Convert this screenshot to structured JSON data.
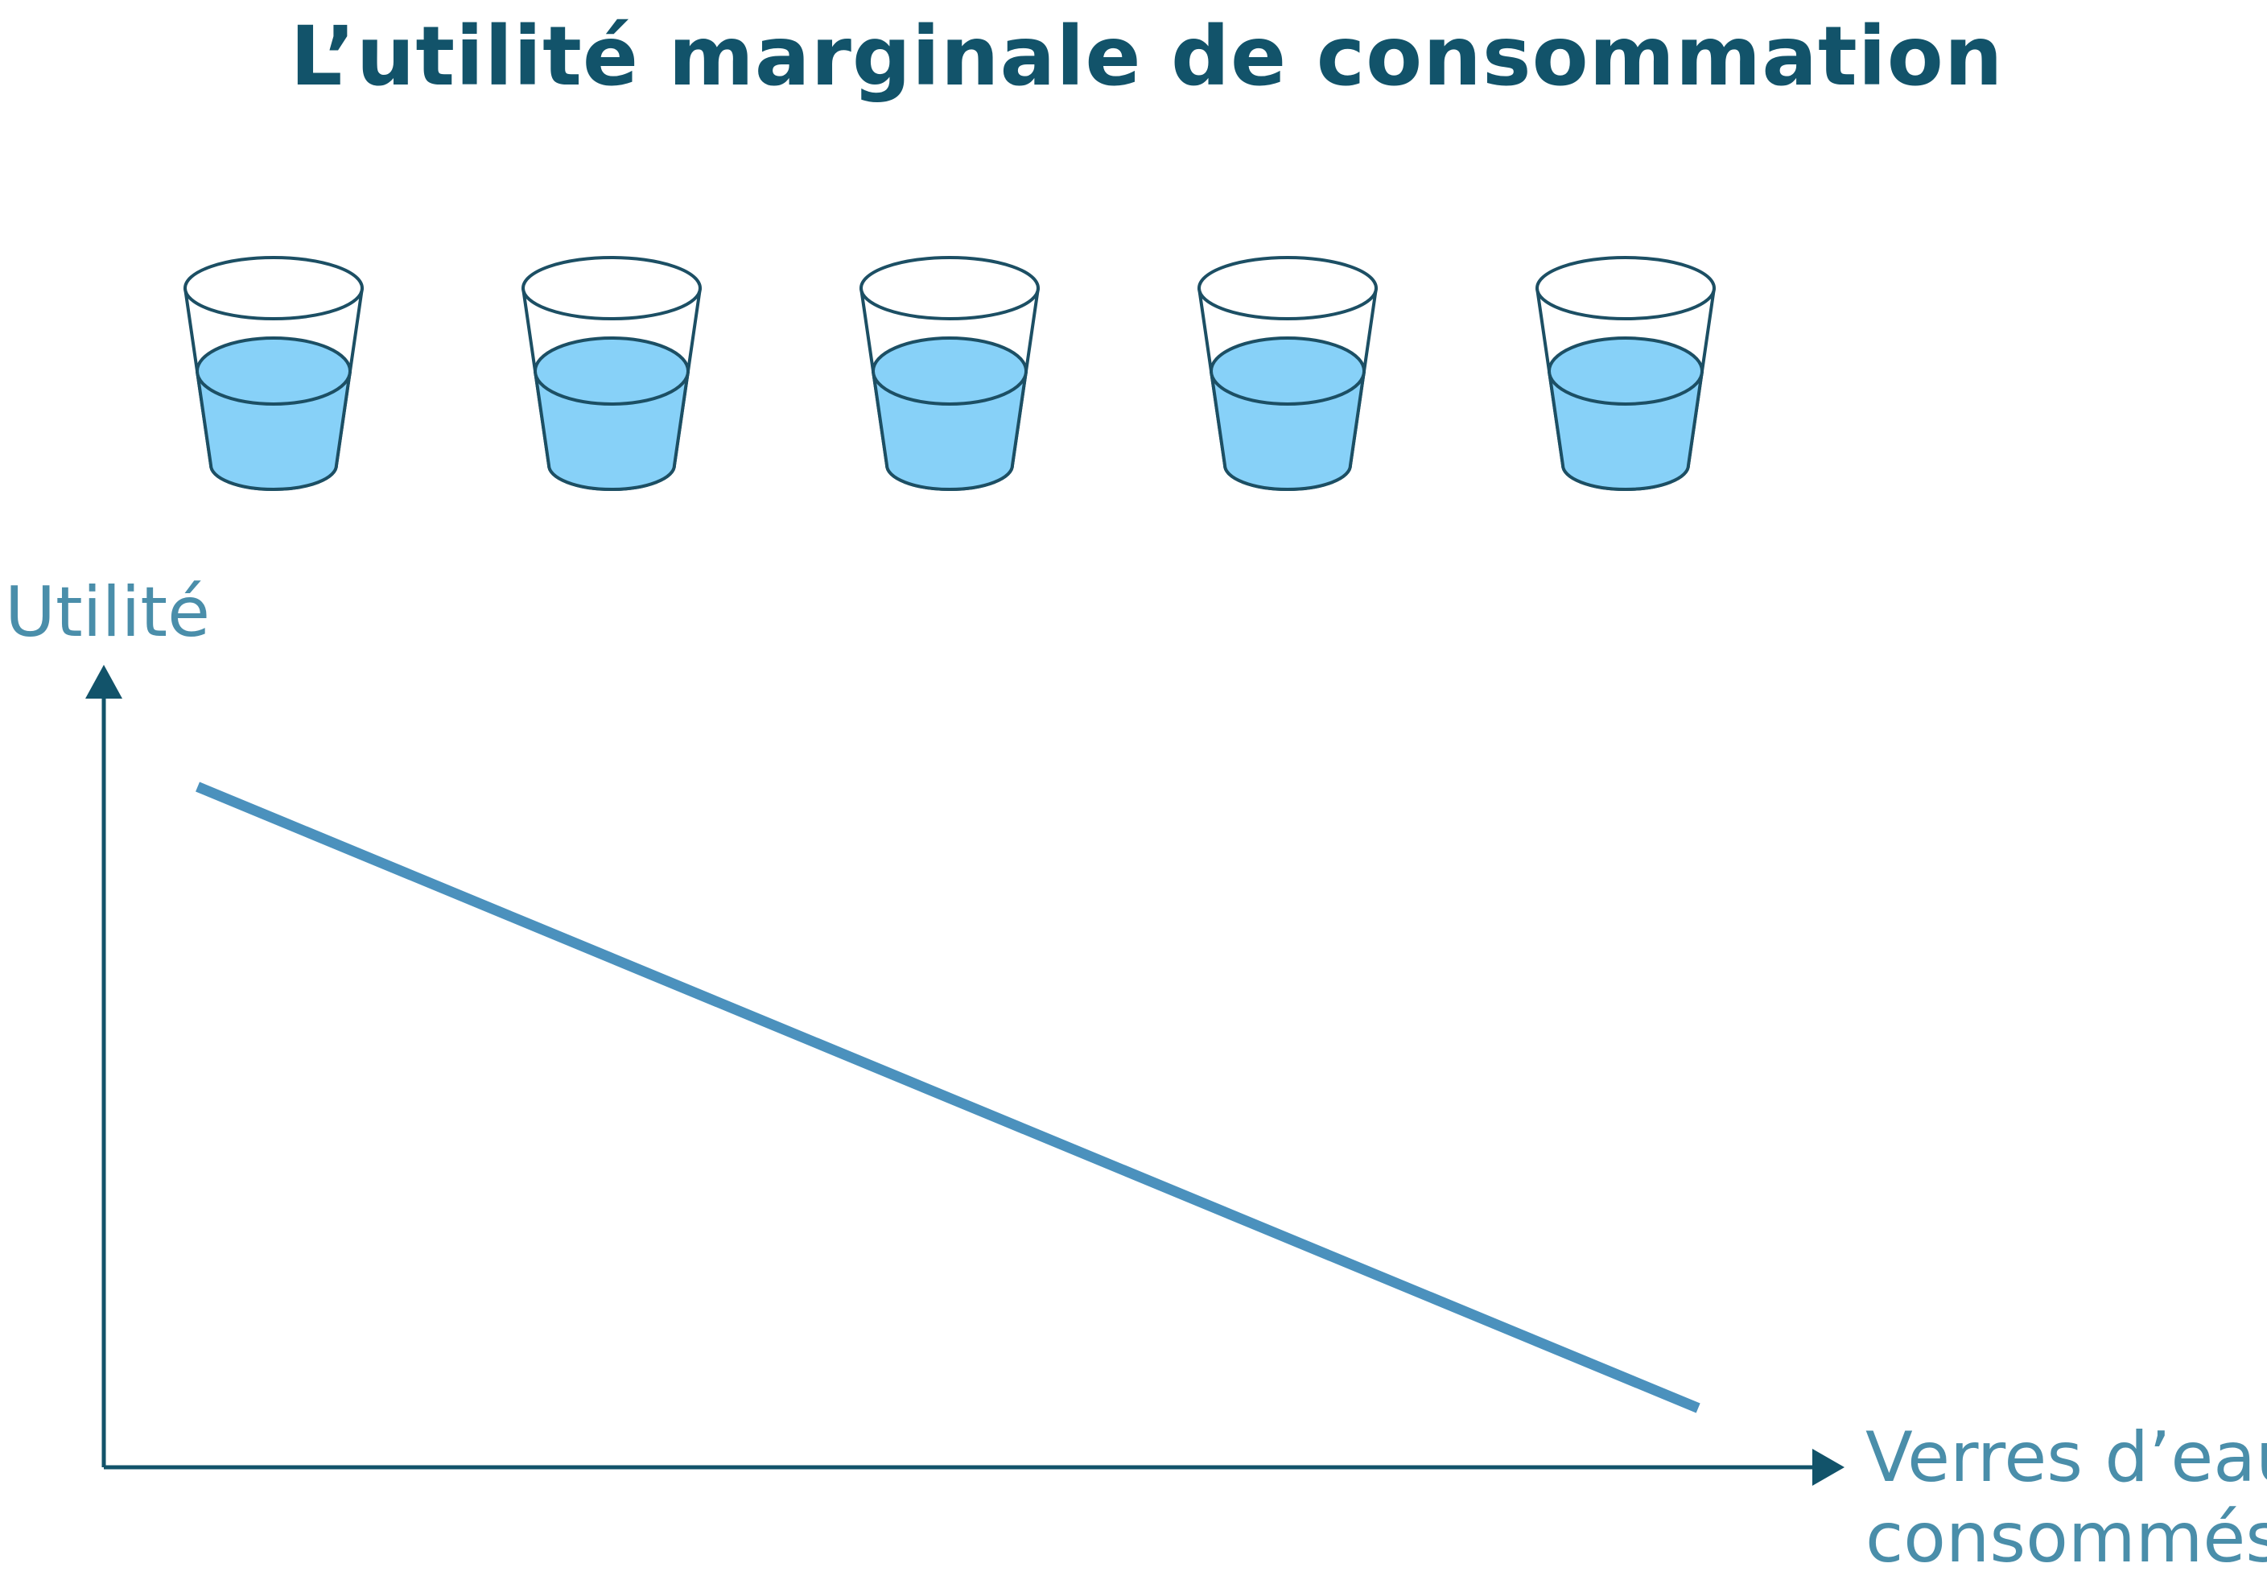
{
  "chart_data": {
    "type": "line",
    "title": "L’utilité marginale de consommation",
    "ylabel": "Utilité",
    "xlabel_lines": [
      "Verres d’eau",
      "consommés"
    ],
    "series": [
      {
        "x": [
          1,
          5
        ],
        "y": [
          0.92,
          0.08
        ]
      }
    ],
    "xlim": [
      0.75,
      5.3
    ],
    "ylim": [
      0,
      1.05
    ],
    "grid": false,
    "legend": "none",
    "glasses_count": 5,
    "colors": {
      "title": "#12536a",
      "axis": "#12536a",
      "label": "#4a8eaa",
      "line": "#4b91bd",
      "water": "#87d1f8",
      "glass_stroke": "#1c4f64"
    }
  }
}
